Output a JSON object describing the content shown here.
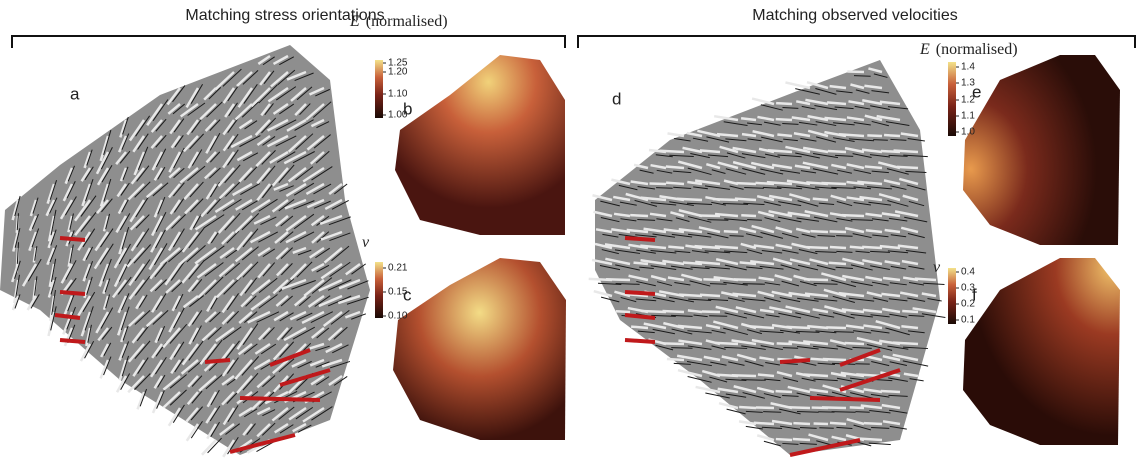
{
  "left": {
    "title": "Matching stress orientations",
    "main_label": "a",
    "modulus": {
      "label": "b",
      "symbol": "E",
      "unit": "(normalised)",
      "ticks": [
        "1.25",
        "1.20",
        "1.10",
        "1.00"
      ]
    },
    "poisson": {
      "label": "c",
      "symbol": "ν",
      "ticks": [
        "0.21",
        "0.15",
        "0.10"
      ]
    }
  },
  "right": {
    "title": "Matching observed velocities",
    "main_label": "d",
    "modulus": {
      "label": "e",
      "symbol": "E",
      "unit": "(normalised)",
      "ticks": [
        "1.4",
        "1.3",
        "1.2",
        "1.1",
        "1.0"
      ]
    },
    "poisson": {
      "label": "f",
      "symbol": "ν",
      "ticks": [
        "0.4",
        "0.3",
        "0.2",
        "0.1"
      ]
    }
  }
}
